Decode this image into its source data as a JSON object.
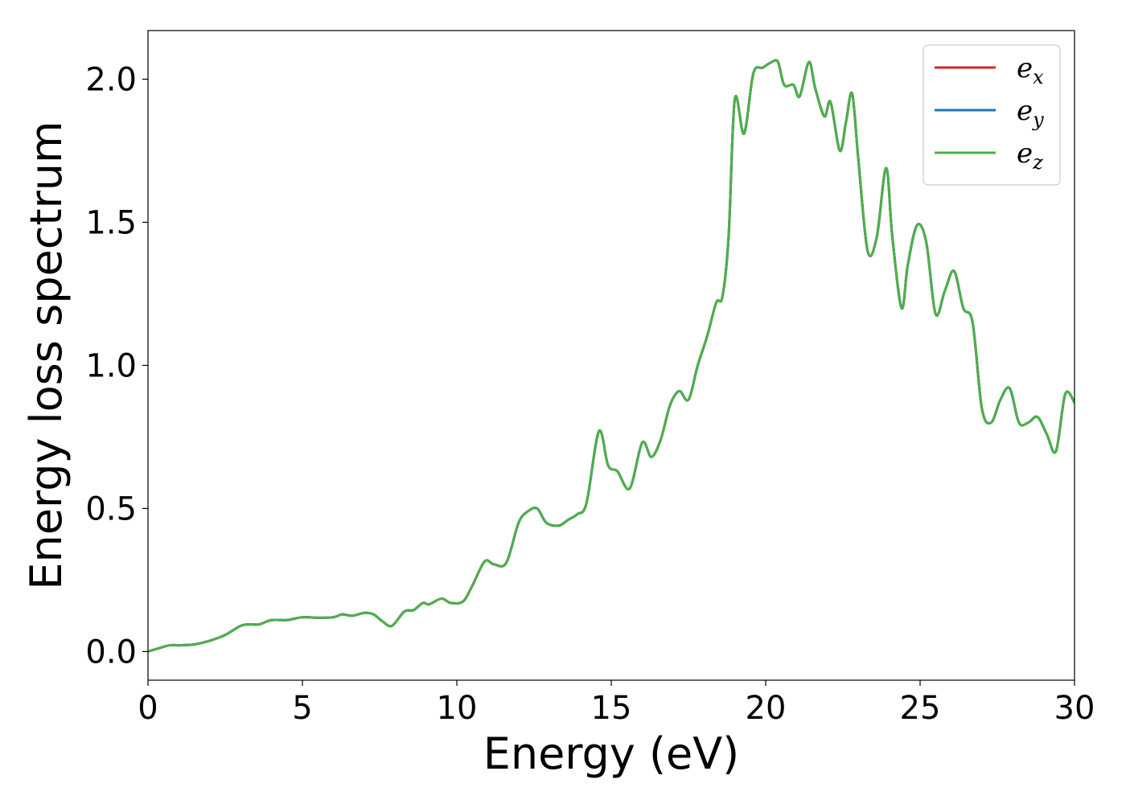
{
  "chart_data": {
    "type": "line",
    "title": "",
    "xlabel": "Energy (eV)",
    "ylabel": "Energy loss spectrum",
    "xlim": [
      0,
      30
    ],
    "ylim": [
      -0.1,
      2.17
    ],
    "x_ticks": [
      0,
      5,
      10,
      15,
      20,
      25,
      30
    ],
    "x_tick_labels": [
      "0",
      "5",
      "10",
      "15",
      "20",
      "25",
      "30"
    ],
    "y_ticks": [
      0.0,
      0.5,
      1.0,
      1.5,
      2.0
    ],
    "y_tick_labels": [
      "0.0",
      "0.5",
      "1.0",
      "1.5",
      "2.0"
    ],
    "grid": false,
    "legend_position": "top-right",
    "series": [
      {
        "name": "e",
        "subscript": "x",
        "color": "#d62728"
      },
      {
        "name": "e",
        "subscript": "y",
        "color": "#1f77b4"
      },
      {
        "name": "e",
        "subscript": "z",
        "color": "#4daf4a"
      }
    ],
    "x": [
      0,
      0.3,
      0.7,
      1.0,
      1.5,
      2.0,
      2.5,
      3.0,
      3.3,
      3.6,
      4.0,
      4.5,
      5.0,
      5.5,
      6.0,
      6.3,
      6.6,
      7.0,
      7.3,
      7.6,
      7.9,
      8.3,
      8.6,
      8.9,
      9.1,
      9.5,
      9.8,
      10.2,
      10.5,
      10.9,
      11.2,
      11.6,
      12.0,
      12.3,
      12.6,
      12.9,
      13.3,
      13.6,
      13.9,
      14.2,
      14.6,
      14.9,
      15.2,
      15.6,
      16.0,
      16.3,
      16.6,
      16.9,
      17.2,
      17.5,
      17.8,
      18.1,
      18.4,
      18.6,
      18.8,
      19.0,
      19.3,
      19.6,
      19.9,
      20.2,
      20.4,
      20.6,
      20.9,
      21.1,
      21.4,
      21.6,
      21.9,
      22.1,
      22.4,
      22.6,
      22.8,
      23.0,
      23.3,
      23.6,
      23.9,
      24.1,
      24.4,
      24.6,
      24.9,
      25.2,
      25.5,
      25.8,
      26.1,
      26.4,
      26.7,
      27.0,
      27.3,
      27.6,
      27.9,
      28.2,
      28.5,
      28.8,
      29.1,
      29.4,
      29.7,
      30.0
    ],
    "values": [
      0.0,
      0.01,
      0.022,
      0.022,
      0.025,
      0.038,
      0.058,
      0.09,
      0.095,
      0.095,
      0.11,
      0.11,
      0.12,
      0.118,
      0.12,
      0.13,
      0.125,
      0.135,
      0.13,
      0.105,
      0.09,
      0.14,
      0.145,
      0.17,
      0.165,
      0.185,
      0.17,
      0.175,
      0.23,
      0.315,
      0.305,
      0.31,
      0.45,
      0.49,
      0.5,
      0.45,
      0.44,
      0.46,
      0.48,
      0.52,
      0.77,
      0.65,
      0.63,
      0.57,
      0.73,
      0.68,
      0.74,
      0.86,
      0.91,
      0.88,
      1.0,
      1.1,
      1.22,
      1.24,
      1.45,
      1.93,
      1.81,
      2.02,
      2.04,
      2.06,
      2.06,
      1.98,
      1.98,
      1.94,
      2.06,
      1.97,
      1.87,
      1.92,
      1.75,
      1.85,
      1.95,
      1.72,
      1.4,
      1.45,
      1.69,
      1.45,
      1.2,
      1.35,
      1.49,
      1.43,
      1.18,
      1.26,
      1.33,
      1.2,
      1.15,
      0.85,
      0.8,
      0.88,
      0.92,
      0.8,
      0.8,
      0.82,
      0.76,
      0.7,
      0.9,
      0.87
    ]
  }
}
